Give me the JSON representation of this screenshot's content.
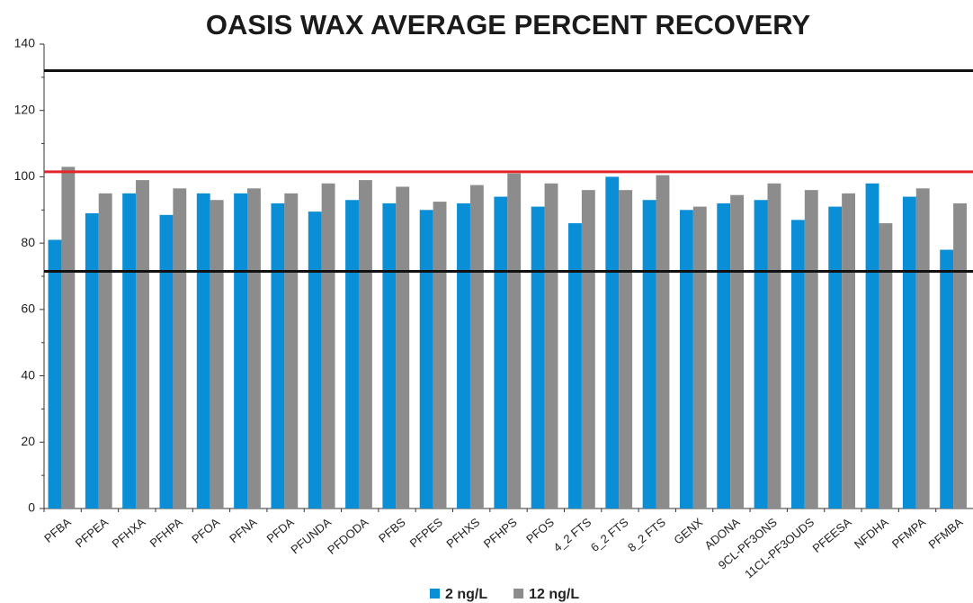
{
  "chart_data": {
    "type": "bar",
    "title": "OASIS WAX AVERAGE PERCENT RECOVERY",
    "categories": [
      "PFBA",
      "PFPEA",
      "PFHXA",
      "PFHPA",
      "PFOA",
      "PFNA",
      "PFDA",
      "PFUNDA",
      "PFDODA",
      "PFBS",
      "PFPES",
      "PFHXS",
      "PFHPS",
      "PFOS",
      "4_2 FTS",
      "6_2 FTS",
      "8_2 FTS",
      "GENX",
      "ADONA",
      "9CL-PF3ONS",
      "11CL-PF3OUDS",
      "PFEESA",
      "NFDHA",
      "PFMPA",
      "PFMBA"
    ],
    "series": [
      {
        "name": "2 ng/L",
        "color": "#0a8fd6",
        "values": [
          81,
          89,
          95,
          88.5,
          95,
          95,
          92,
          89.5,
          93,
          92,
          90,
          92,
          94,
          91,
          86,
          100,
          93,
          90,
          92,
          93,
          87,
          91,
          98,
          94,
          78
        ]
      },
      {
        "name": "12 ng/L",
        "color": "#8c8c8c",
        "values": [
          103,
          95,
          99,
          96.5,
          93,
          96.5,
          95,
          98,
          99,
          97,
          92.5,
          97.5,
          101,
          98,
          96,
          96,
          100.5,
          91,
          94.5,
          98,
          96,
          95,
          86,
          96.5,
          92
        ]
      }
    ],
    "reference_lines": [
      {
        "value": 132,
        "color": "#111111"
      },
      {
        "value": 101.5,
        "color": "#e0262a"
      },
      {
        "value": 71.5,
        "color": "#111111"
      }
    ],
    "ylim": [
      0,
      140
    ],
    "yticks": [
      0,
      20,
      40,
      60,
      80,
      100,
      120,
      140
    ],
    "minor_yticks": [
      10,
      30,
      50,
      70,
      90,
      110,
      130
    ]
  }
}
